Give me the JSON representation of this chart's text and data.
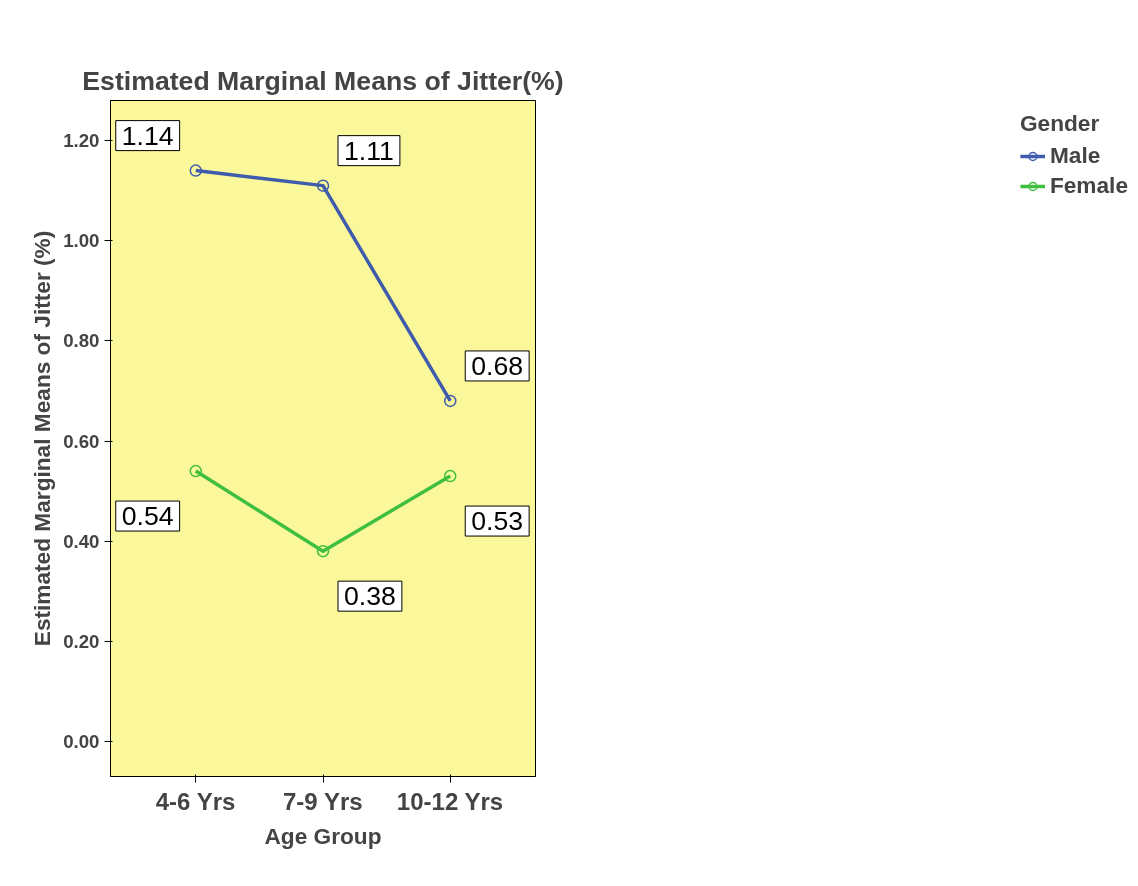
{
  "chart_data": {
    "type": "line",
    "title": "Estimated Marginal Means of Jitter(%)",
    "xlabel": "Age Group",
    "ylabel": "Estimated Marginal Means of Jitter (%)",
    "legend_title": "Gender",
    "categories": [
      "4-6 Yrs",
      "7-9 Yrs",
      "10-12 Yrs"
    ],
    "series": [
      {
        "name": "Male",
        "color": "#3f5bab",
        "values": [
          1.14,
          1.11,
          0.68
        ]
      },
      {
        "name": "Female",
        "color": "#3fbf3f",
        "values": [
          0.54,
          0.38,
          0.53
        ]
      }
    ],
    "ylim": [
      -0.07,
      1.28
    ],
    "yticks": [
      {
        "value": 0,
        "label": "0.00"
      },
      {
        "value": 0.2,
        "label": "0.20"
      },
      {
        "value": 0.4,
        "label": "0.40"
      },
      {
        "value": 0.6,
        "label": "0.60"
      },
      {
        "value": 0.8,
        "label": "0.80"
      },
      {
        "value": 1.0,
        "label": "1.00"
      },
      {
        "value": 1.2,
        "label": "1.20"
      }
    ],
    "grid": false,
    "legend": "right",
    "marker": "circle",
    "line_style": "solid",
    "data_labels": true
  }
}
